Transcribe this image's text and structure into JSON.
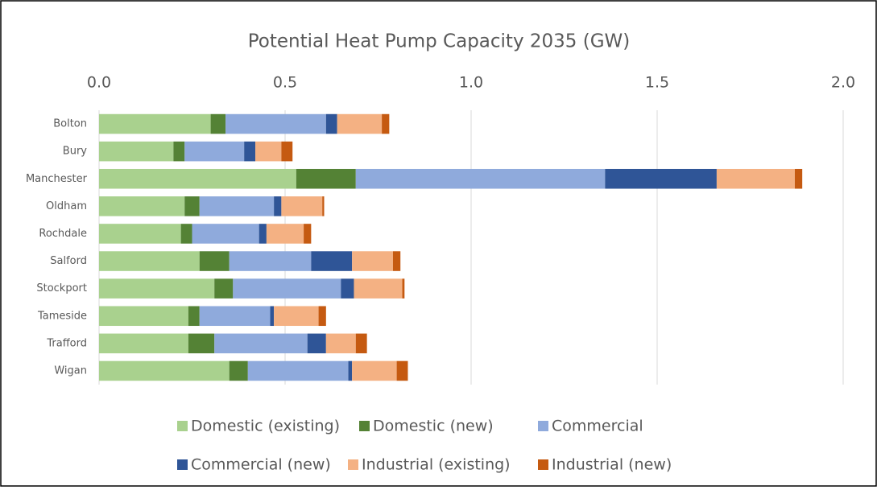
{
  "chart_data": {
    "type": "stacked-bar-horizontal",
    "title": "Potential Heat Pump Capacity 2035 (GW)",
    "categories": [
      "Bolton",
      "Bury",
      "Manchester",
      "Oldham",
      "Rochdale",
      "Salford",
      "Stockport",
      "Tameside",
      "Trafford",
      "Wigan"
    ],
    "series": [
      {
        "name": "Domestic (existing)",
        "color": "#a9d18e",
        "values": [
          0.3,
          0.2,
          0.53,
          0.23,
          0.22,
          0.27,
          0.31,
          0.24,
          0.24,
          0.35
        ]
      },
      {
        "name": "Domestic (new)",
        "color": "#548235",
        "values": [
          0.04,
          0.03,
          0.16,
          0.04,
          0.03,
          0.08,
          0.05,
          0.03,
          0.07,
          0.05
        ]
      },
      {
        "name": "Commercial",
        "color": "#8faadc",
        "values": [
          0.27,
          0.16,
          0.67,
          0.2,
          0.18,
          0.22,
          0.29,
          0.19,
          0.25,
          0.27
        ]
      },
      {
        "name": "Commercial (new)",
        "color": "#2f5597",
        "values": [
          0.03,
          0.03,
          0.3,
          0.02,
          0.02,
          0.11,
          0.035,
          0.01,
          0.05,
          0.01
        ]
      },
      {
        "name": "Industrial (existing)",
        "color": "#f4b183",
        "values": [
          0.12,
          0.07,
          0.21,
          0.11,
          0.1,
          0.11,
          0.13,
          0.12,
          0.08,
          0.12
        ]
      },
      {
        "name": "Industrial (new)",
        "color": "#c55a11",
        "values": [
          0.02,
          0.03,
          0.02,
          0.005,
          0.02,
          0.02,
          0.006,
          0.02,
          0.03,
          0.03
        ]
      }
    ],
    "xlim": [
      0,
      2
    ],
    "xticks": [
      {
        "value": 0,
        "label": "0.0"
      },
      0.5,
      {
        "value": 1,
        "label": "1.0"
      },
      1.5,
      {
        "value": 2,
        "label": "2.0"
      }
    ],
    "grid": true,
    "legend": "bottom"
  }
}
